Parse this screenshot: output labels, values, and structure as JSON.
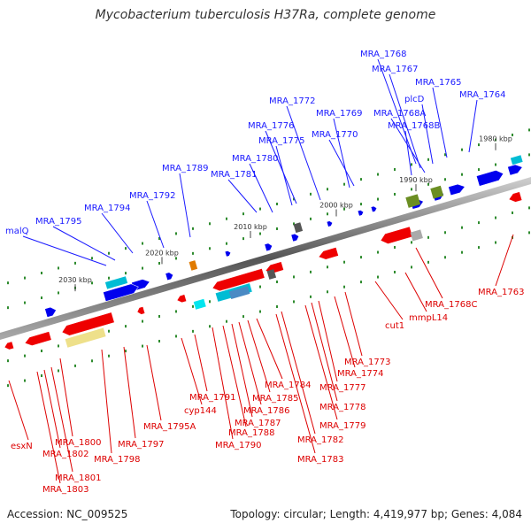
{
  "title": "Mycobacterium tuberculosis H37Ra, complete genome",
  "footer": {
    "accession": "Accession: NC_009525",
    "stats": "Topology: circular; Length: 4,419,977 bp; Genes: 4,084"
  },
  "colors": {
    "forward_gene": "#0000ee",
    "reverse_gene": "#ee0000",
    "forward_label": "#1a1aff",
    "reverse_label": "#dd0000",
    "tick": "#2e8b2e",
    "backbone": "#888888"
  },
  "ticks": [
    "1980 kbp",
    "1990 kbp",
    "2000 kbp",
    "2010 kbp",
    "2020 kbp",
    "2030 kbp"
  ],
  "forward_labels": [
    "MRA_1768",
    "MRA_1767",
    "MRA_1765",
    "MRA_1764",
    "plcD",
    "MRA_1768A",
    "MRA_1768B",
    "MRA_1772",
    "MRA_1769",
    "MRA_1776",
    "MRA_1770",
    "MRA_1775",
    "MRA_1780",
    "MRA_1781",
    "MRA_1789",
    "MRA_1792",
    "MRA_1794",
    "MRA_1795",
    "malQ"
  ],
  "reverse_labels": [
    "MRA_1763",
    "MRA_1768C",
    "mmpL14",
    "cut1",
    "MRA_1773",
    "MRA_1774",
    "MRA_1777",
    "MRA_1778",
    "MRA_1779",
    "MRA_1782",
    "MRA_1783",
    "MRA_1784",
    "MRA_1785",
    "MRA_1786",
    "MRA_1787",
    "MRA_1788",
    "MRA_1790",
    "MRA_1791",
    "cyp144",
    "MRA_1795A",
    "MRA_1797",
    "MRA_1798",
    "MRA_1800",
    "MRA_1801",
    "MRA_1802",
    "MRA_1803",
    "esxN"
  ]
}
